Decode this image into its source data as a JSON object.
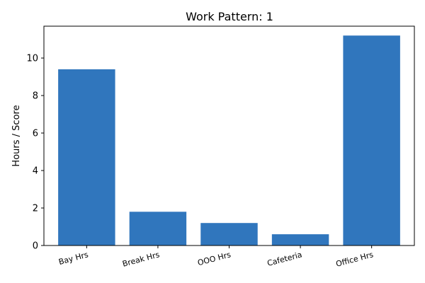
{
  "chart_data": {
    "type": "bar",
    "title": "Work Pattern: 1",
    "xlabel": "",
    "ylabel": "Hours / Score",
    "categories": [
      "Bay Hrs",
      "Break Hrs",
      "OOO Hrs",
      "Cafeteria",
      "Office Hrs"
    ],
    "values": [
      9.4,
      1.8,
      1.2,
      0.6,
      11.2
    ],
    "ylim": [
      0,
      11.7
    ],
    "yticks": [
      0,
      2,
      4,
      6,
      8,
      10
    ],
    "grid": false,
    "bar_color": "#3076bd"
  }
}
